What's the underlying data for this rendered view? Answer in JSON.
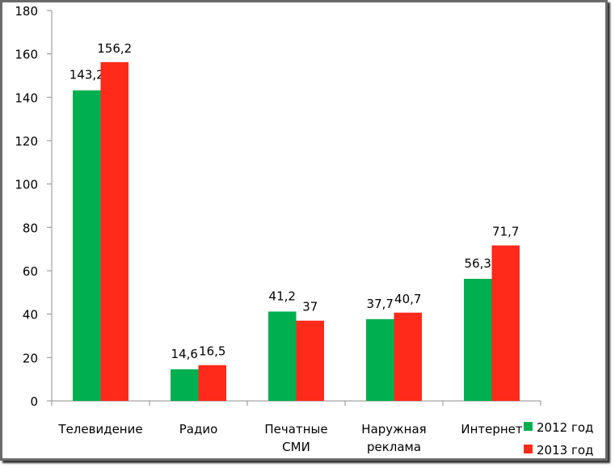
{
  "chart_data": {
    "type": "bar",
    "categories": [
      "Телевидение",
      "Радио",
      "Печатные СМИ",
      "Наружная реклама",
      "Интернет"
    ],
    "category_lines": [
      [
        "Телевидение"
      ],
      [
        "Радио"
      ],
      [
        "Печатные",
        "СМИ"
      ],
      [
        "Наружная",
        "реклама"
      ],
      [
        "Интернет"
      ]
    ],
    "series": [
      {
        "name": "2012 год",
        "color": "#00b050",
        "values": [
          143.2,
          14.6,
          41.2,
          37.7,
          56.3
        ],
        "labels": [
          "143,2",
          "14,6",
          "41,2",
          "37,7",
          "56,3"
        ]
      },
      {
        "name": "2013 год",
        "color": "#ff2a1a",
        "values": [
          156.2,
          16.5,
          37,
          40.7,
          71.7
        ],
        "labels": [
          "156,2",
          "16,5",
          "37",
          "40,7",
          "71,7"
        ]
      }
    ],
    "yticks": [
      0,
      20,
      40,
      60,
      80,
      100,
      120,
      140,
      160,
      180
    ],
    "ylim": [
      0,
      180
    ],
    "title": "",
    "xlabel": "",
    "ylabel": "",
    "grid": false,
    "legend": "bottom-right"
  }
}
